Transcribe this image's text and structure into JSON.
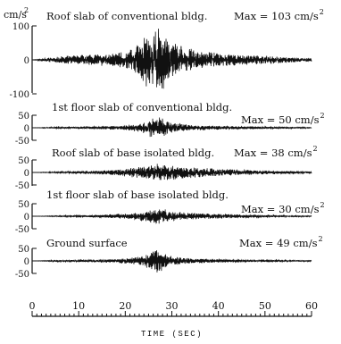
{
  "chart_data": {
    "type": "line",
    "xlabel": "TIME (SEC)",
    "xlim": [
      0,
      60
    ],
    "x_ticks": [
      0,
      10,
      20,
      30,
      40,
      50,
      60
    ],
    "y_unit_prefix": "cm/s",
    "y_unit_exponent": "2",
    "colors": {
      "trace": "#111111",
      "axis": "#111111",
      "background": "#ffffff"
    },
    "panels": [
      {
        "name": "Roof slab of conventional bldg.",
        "max_label": "Max = 103 cm/s",
        "max_value": 103,
        "ylim": [
          -100,
          100
        ],
        "y_ticks": [
          100,
          0,
          -100
        ],
        "envelope": {
          "t": [
            0,
            2,
            5,
            8,
            12,
            15,
            18,
            21,
            23,
            24.5,
            26,
            27,
            28,
            29,
            31,
            33,
            35,
            38,
            42,
            46,
            50,
            55,
            60
          ],
          "amp": [
            0,
            4,
            9,
            13,
            15,
            18,
            22,
            32,
            50,
            90,
            80,
            103,
            95,
            70,
            52,
            40,
            30,
            24,
            18,
            15,
            13,
            9,
            5
          ]
        }
      },
      {
        "name": "1st floor slab of conventional bldg.",
        "max_label": "Max = 50 cm/s",
        "max_value": 50,
        "ylim": [
          -50,
          50
        ],
        "y_ticks": [
          50,
          0,
          -50
        ],
        "envelope": {
          "t": [
            0,
            5,
            10,
            15,
            18,
            20,
            22,
            24,
            25.5,
            26.5,
            27,
            28,
            29,
            31,
            34,
            38,
            42,
            48,
            55,
            60
          ],
          "amp": [
            0,
            3,
            4,
            6,
            8,
            10,
            15,
            24,
            38,
            45,
            50,
            40,
            28,
            18,
            12,
            9,
            7,
            5,
            3,
            2
          ]
        }
      },
      {
        "name": "Roof slab of base isolated bldg.",
        "max_label": "Max = 38 cm/s",
        "max_value": 38,
        "ylim": [
          -50,
          50
        ],
        "y_ticks": [
          50,
          0,
          -50
        ],
        "envelope": {
          "t": [
            0,
            5,
            10,
            15,
            18,
            21,
            23,
            25,
            27,
            28.5,
            30,
            33,
            36,
            40,
            45,
            50,
            55,
            60
          ],
          "amp": [
            0,
            3,
            5,
            8,
            12,
            18,
            25,
            32,
            38,
            35,
            30,
            24,
            20,
            15,
            11,
            8,
            6,
            4
          ]
        }
      },
      {
        "name": "1st floor slab of base isolated bldg.",
        "max_label": "Max = 30 cm/s",
        "max_value": 30,
        "ylim": [
          -50,
          50
        ],
        "y_ticks": [
          50,
          0,
          -50
        ],
        "envelope": {
          "t": [
            0,
            5,
            10,
            15,
            18,
            21,
            23,
            25,
            27,
            28.5,
            30,
            33,
            36,
            40,
            45,
            50,
            55,
            60
          ],
          "amp": [
            0,
            2,
            4,
            6,
            9,
            13,
            18,
            24,
            30,
            28,
            22,
            16,
            12,
            9,
            7,
            5,
            3,
            2
          ]
        }
      },
      {
        "name": "Ground surface",
        "max_label": "Max = 49 cm/s",
        "max_value": 49,
        "ylim": [
          -50,
          50
        ],
        "y_ticks": [
          50,
          0,
          -50
        ],
        "envelope": {
          "t": [
            0,
            5,
            10,
            15,
            18,
            21,
            23,
            24.5,
            26,
            27,
            28,
            29,
            31,
            34,
            38,
            42,
            48,
            55,
            60
          ],
          "amp": [
            0,
            3,
            4,
            6,
            8,
            12,
            18,
            28,
            42,
            49,
            38,
            26,
            16,
            11,
            8,
            6,
            4,
            3,
            2
          ]
        }
      }
    ]
  }
}
